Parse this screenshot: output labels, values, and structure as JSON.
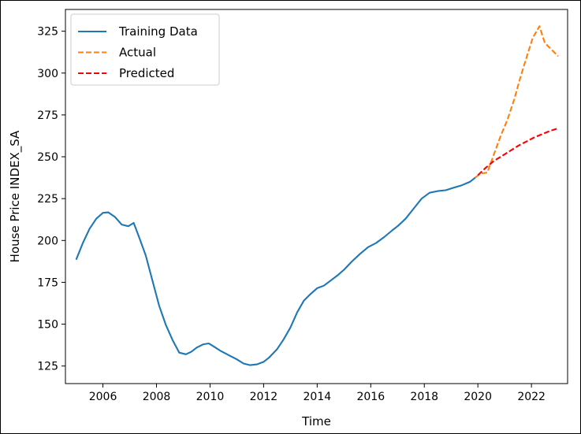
{
  "chart_data": {
    "type": "line",
    "xlabel": "Time",
    "ylabel": "House Price INDEX_SA",
    "xlim": [
      2004.6,
      2023.35
    ],
    "ylim": [
      114.5,
      338.0
    ],
    "xticks": [
      2006,
      2008,
      2010,
      2012,
      2014,
      2016,
      2018,
      2020,
      2022
    ],
    "yticks": [
      125,
      150,
      175,
      200,
      225,
      250,
      275,
      300,
      325
    ],
    "grid": false,
    "legend_position": "top-left",
    "series": [
      {
        "name": "Training Data",
        "color": "#1f77b4",
        "style": "solid",
        "x": [
          2005.0,
          2005.25,
          2005.5,
          2005.75,
          2006.0,
          2006.2,
          2006.45,
          2006.7,
          2006.95,
          2007.15,
          2007.35,
          2007.6,
          2007.85,
          2008.1,
          2008.35,
          2008.6,
          2008.85,
          2009.1,
          2009.3,
          2009.5,
          2009.75,
          2009.95,
          2010.15,
          2010.4,
          2010.7,
          2011.0,
          2011.25,
          2011.5,
          2011.75,
          2012.0,
          2012.2,
          2012.5,
          2012.75,
          2013.0,
          2013.25,
          2013.5,
          2013.75,
          2014.0,
          2014.25,
          2014.5,
          2014.75,
          2015.0,
          2015.3,
          2015.6,
          2015.9,
          2016.2,
          2016.5,
          2016.8,
          2017.0,
          2017.3,
          2017.6,
          2017.9,
          2018.2,
          2018.5,
          2018.8,
          2019.1,
          2019.4,
          2019.7,
          2019.9
        ],
        "y": [
          188.5,
          198.5,
          207,
          213,
          216.5,
          216.8,
          214,
          209.5,
          208.5,
          210.5,
          202,
          191,
          176,
          161,
          149.5,
          140.5,
          133,
          132,
          133.5,
          136,
          138,
          138.5,
          136.5,
          134,
          131.5,
          129,
          126.5,
          125.5,
          126,
          127.5,
          130,
          135,
          141,
          148,
          157,
          164,
          168,
          171.5,
          173,
          176,
          179,
          182.5,
          187.5,
          192,
          196,
          198.5,
          202,
          206,
          208.5,
          213,
          219,
          225,
          228.5,
          229.5,
          230,
          231.5,
          233,
          235,
          237.5
        ]
      },
      {
        "name": "Actual",
        "color": "#ff7f0e",
        "style": "dashed",
        "x": [
          2019.9,
          2020.1,
          2020.35,
          2020.6,
          2020.85,
          2021.1,
          2021.35,
          2021.6,
          2021.85,
          2022.05,
          2022.3,
          2022.5,
          2022.75,
          2023.0
        ],
        "y": [
          237.5,
          240,
          240.5,
          251.5,
          262.5,
          272,
          284,
          298,
          311,
          321,
          328,
          318,
          314,
          310
        ]
      },
      {
        "name": "Predicted",
        "color": "#ff0000",
        "style": "dashed",
        "x": [
          2020.0,
          2020.3,
          2020.6,
          2020.9,
          2021.2,
          2021.5,
          2021.8,
          2022.1,
          2022.4,
          2022.7,
          2023.0
        ],
        "y": [
          239,
          243.5,
          247.5,
          250.5,
          253.5,
          256.5,
          259,
          261.5,
          263.5,
          265.5,
          267
        ]
      }
    ]
  }
}
